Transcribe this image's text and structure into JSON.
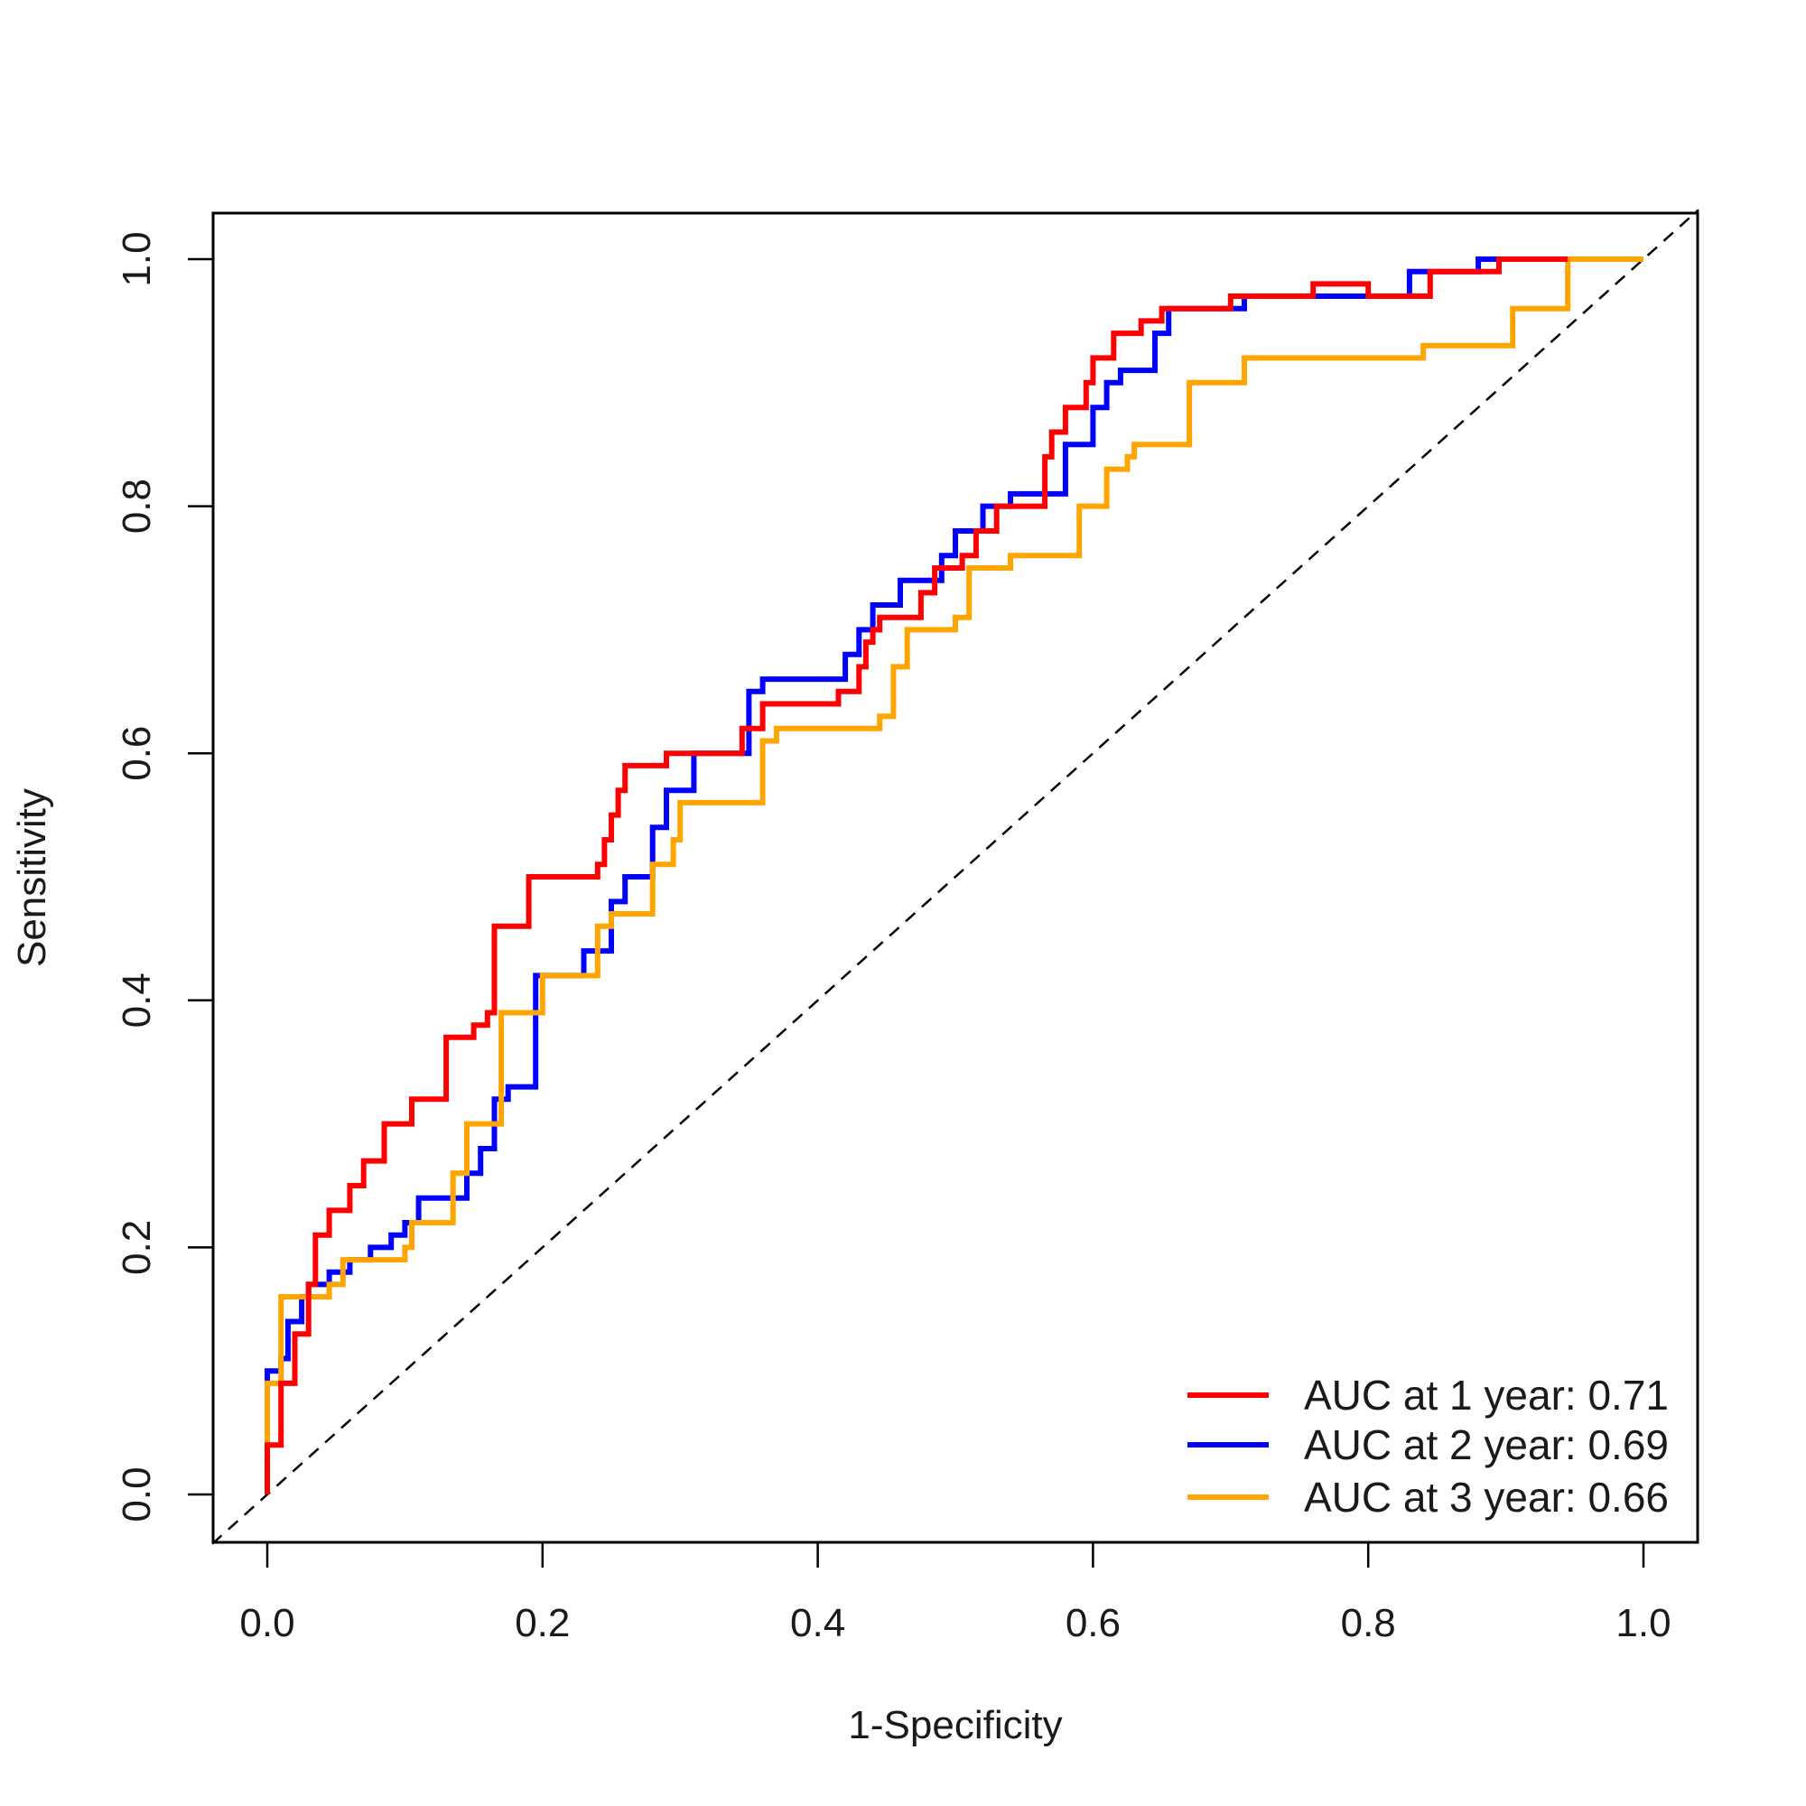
{
  "chart_data": {
    "type": "line",
    "title": "",
    "xlabel": "1-Specificity",
    "ylabel": "Sensitivity",
    "xlim": [
      0,
      1
    ],
    "ylim": [
      0,
      1
    ],
    "xticks": [
      "0.0",
      "0.2",
      "0.4",
      "0.6",
      "0.8",
      "1.0"
    ],
    "yticks": [
      "0.0",
      "0.2",
      "0.4",
      "0.6",
      "0.8",
      "1.0"
    ],
    "grid": false,
    "legend_position": "bottom-right",
    "reference_line": {
      "from": [
        0,
        0
      ],
      "to": [
        1,
        1
      ],
      "color": "#000000",
      "style": "dashed"
    },
    "series": [
      {
        "name": "AUC at 1 year: 0.71",
        "color": "#ff0000",
        "points": [
          [
            0.0,
            0.0
          ],
          [
            0.0,
            0.04
          ],
          [
            0.01,
            0.04
          ],
          [
            0.01,
            0.09
          ],
          [
            0.02,
            0.09
          ],
          [
            0.02,
            0.13
          ],
          [
            0.03,
            0.13
          ],
          [
            0.03,
            0.17
          ],
          [
            0.035,
            0.17
          ],
          [
            0.035,
            0.21
          ],
          [
            0.045,
            0.21
          ],
          [
            0.045,
            0.23
          ],
          [
            0.06,
            0.23
          ],
          [
            0.06,
            0.25
          ],
          [
            0.07,
            0.25
          ],
          [
            0.07,
            0.27
          ],
          [
            0.085,
            0.27
          ],
          [
            0.085,
            0.3
          ],
          [
            0.105,
            0.3
          ],
          [
            0.105,
            0.32
          ],
          [
            0.13,
            0.32
          ],
          [
            0.13,
            0.37
          ],
          [
            0.15,
            0.37
          ],
          [
            0.15,
            0.38
          ],
          [
            0.16,
            0.38
          ],
          [
            0.16,
            0.39
          ],
          [
            0.165,
            0.39
          ],
          [
            0.165,
            0.46
          ],
          [
            0.19,
            0.46
          ],
          [
            0.19,
            0.5
          ],
          [
            0.24,
            0.5
          ],
          [
            0.24,
            0.51
          ],
          [
            0.245,
            0.51
          ],
          [
            0.245,
            0.53
          ],
          [
            0.25,
            0.53
          ],
          [
            0.25,
            0.55
          ],
          [
            0.255,
            0.55
          ],
          [
            0.255,
            0.57
          ],
          [
            0.26,
            0.57
          ],
          [
            0.26,
            0.59
          ],
          [
            0.29,
            0.59
          ],
          [
            0.29,
            0.6
          ],
          [
            0.345,
            0.6
          ],
          [
            0.345,
            0.62
          ],
          [
            0.36,
            0.62
          ],
          [
            0.36,
            0.64
          ],
          [
            0.415,
            0.64
          ],
          [
            0.415,
            0.65
          ],
          [
            0.43,
            0.65
          ],
          [
            0.43,
            0.67
          ],
          [
            0.435,
            0.67
          ],
          [
            0.435,
            0.69
          ],
          [
            0.44,
            0.69
          ],
          [
            0.44,
            0.7
          ],
          [
            0.445,
            0.7
          ],
          [
            0.445,
            0.71
          ],
          [
            0.475,
            0.71
          ],
          [
            0.475,
            0.73
          ],
          [
            0.485,
            0.73
          ],
          [
            0.485,
            0.75
          ],
          [
            0.505,
            0.75
          ],
          [
            0.505,
            0.76
          ],
          [
            0.515,
            0.76
          ],
          [
            0.515,
            0.78
          ],
          [
            0.53,
            0.78
          ],
          [
            0.53,
            0.8
          ],
          [
            0.565,
            0.8
          ],
          [
            0.565,
            0.84
          ],
          [
            0.57,
            0.84
          ],
          [
            0.57,
            0.86
          ],
          [
            0.58,
            0.86
          ],
          [
            0.58,
            0.88
          ],
          [
            0.595,
            0.88
          ],
          [
            0.595,
            0.9
          ],
          [
            0.6,
            0.9
          ],
          [
            0.6,
            0.92
          ],
          [
            0.615,
            0.92
          ],
          [
            0.615,
            0.94
          ],
          [
            0.635,
            0.94
          ],
          [
            0.635,
            0.95
          ],
          [
            0.65,
            0.95
          ],
          [
            0.65,
            0.96
          ],
          [
            0.7,
            0.96
          ],
          [
            0.7,
            0.97
          ],
          [
            0.76,
            0.97
          ],
          [
            0.76,
            0.98
          ],
          [
            0.8,
            0.98
          ],
          [
            0.8,
            0.97
          ],
          [
            0.845,
            0.97
          ],
          [
            0.845,
            0.99
          ],
          [
            0.895,
            0.99
          ],
          [
            0.895,
            1.0
          ],
          [
            0.945,
            1.0
          ]
        ]
      },
      {
        "name": "AUC at 2 year: 0.69",
        "color": "#0000ff",
        "points": [
          [
            0.0,
            0.0
          ],
          [
            0.0,
            0.1
          ],
          [
            0.01,
            0.1
          ],
          [
            0.01,
            0.11
          ],
          [
            0.015,
            0.11
          ],
          [
            0.015,
            0.14
          ],
          [
            0.025,
            0.14
          ],
          [
            0.025,
            0.16
          ],
          [
            0.03,
            0.16
          ],
          [
            0.03,
            0.17
          ],
          [
            0.045,
            0.17
          ],
          [
            0.045,
            0.18
          ],
          [
            0.06,
            0.18
          ],
          [
            0.06,
            0.19
          ],
          [
            0.075,
            0.19
          ],
          [
            0.075,
            0.2
          ],
          [
            0.09,
            0.2
          ],
          [
            0.09,
            0.21
          ],
          [
            0.1,
            0.21
          ],
          [
            0.1,
            0.22
          ],
          [
            0.11,
            0.22
          ],
          [
            0.11,
            0.24
          ],
          [
            0.145,
            0.24
          ],
          [
            0.145,
            0.26
          ],
          [
            0.155,
            0.26
          ],
          [
            0.155,
            0.28
          ],
          [
            0.165,
            0.28
          ],
          [
            0.165,
            0.32
          ],
          [
            0.175,
            0.32
          ],
          [
            0.175,
            0.33
          ],
          [
            0.195,
            0.33
          ],
          [
            0.195,
            0.42
          ],
          [
            0.23,
            0.42
          ],
          [
            0.23,
            0.44
          ],
          [
            0.25,
            0.44
          ],
          [
            0.25,
            0.48
          ],
          [
            0.26,
            0.48
          ],
          [
            0.26,
            0.5
          ],
          [
            0.28,
            0.5
          ],
          [
            0.28,
            0.54
          ],
          [
            0.29,
            0.54
          ],
          [
            0.29,
            0.57
          ],
          [
            0.31,
            0.57
          ],
          [
            0.31,
            0.6
          ],
          [
            0.35,
            0.6
          ],
          [
            0.35,
            0.65
          ],
          [
            0.36,
            0.65
          ],
          [
            0.36,
            0.66
          ],
          [
            0.42,
            0.66
          ],
          [
            0.42,
            0.68
          ],
          [
            0.43,
            0.68
          ],
          [
            0.43,
            0.7
          ],
          [
            0.44,
            0.7
          ],
          [
            0.44,
            0.72
          ],
          [
            0.46,
            0.72
          ],
          [
            0.46,
            0.74
          ],
          [
            0.49,
            0.74
          ],
          [
            0.49,
            0.76
          ],
          [
            0.5,
            0.76
          ],
          [
            0.5,
            0.78
          ],
          [
            0.52,
            0.78
          ],
          [
            0.52,
            0.8
          ],
          [
            0.54,
            0.8
          ],
          [
            0.54,
            0.81
          ],
          [
            0.58,
            0.81
          ],
          [
            0.58,
            0.85
          ],
          [
            0.6,
            0.85
          ],
          [
            0.6,
            0.88
          ],
          [
            0.61,
            0.88
          ],
          [
            0.61,
            0.9
          ],
          [
            0.62,
            0.9
          ],
          [
            0.62,
            0.91
          ],
          [
            0.645,
            0.91
          ],
          [
            0.645,
            0.94
          ],
          [
            0.655,
            0.94
          ],
          [
            0.655,
            0.96
          ],
          [
            0.71,
            0.96
          ],
          [
            0.71,
            0.97
          ],
          [
            0.83,
            0.97
          ],
          [
            0.83,
            0.99
          ],
          [
            0.88,
            0.99
          ],
          [
            0.88,
            1.0
          ],
          [
            0.945,
            1.0
          ]
        ]
      },
      {
        "name": "AUC at 3 year: 0.66",
        "color": "#ffa500",
        "points": [
          [
            0.0,
            0.0
          ],
          [
            0.0,
            0.09
          ],
          [
            0.01,
            0.09
          ],
          [
            0.01,
            0.16
          ],
          [
            0.045,
            0.16
          ],
          [
            0.045,
            0.17
          ],
          [
            0.055,
            0.17
          ],
          [
            0.055,
            0.19
          ],
          [
            0.1,
            0.19
          ],
          [
            0.1,
            0.2
          ],
          [
            0.105,
            0.2
          ],
          [
            0.105,
            0.22
          ],
          [
            0.135,
            0.22
          ],
          [
            0.135,
            0.26
          ],
          [
            0.145,
            0.26
          ],
          [
            0.145,
            0.3
          ],
          [
            0.17,
            0.3
          ],
          [
            0.17,
            0.39
          ],
          [
            0.2,
            0.39
          ],
          [
            0.2,
            0.42
          ],
          [
            0.24,
            0.42
          ],
          [
            0.24,
            0.46
          ],
          [
            0.25,
            0.46
          ],
          [
            0.25,
            0.47
          ],
          [
            0.28,
            0.47
          ],
          [
            0.28,
            0.51
          ],
          [
            0.295,
            0.51
          ],
          [
            0.295,
            0.53
          ],
          [
            0.3,
            0.53
          ],
          [
            0.3,
            0.56
          ],
          [
            0.36,
            0.56
          ],
          [
            0.36,
            0.61
          ],
          [
            0.37,
            0.61
          ],
          [
            0.37,
            0.62
          ],
          [
            0.445,
            0.62
          ],
          [
            0.445,
            0.63
          ],
          [
            0.455,
            0.63
          ],
          [
            0.455,
            0.67
          ],
          [
            0.465,
            0.67
          ],
          [
            0.465,
            0.7
          ],
          [
            0.5,
            0.7
          ],
          [
            0.5,
            0.71
          ],
          [
            0.51,
            0.71
          ],
          [
            0.51,
            0.75
          ],
          [
            0.54,
            0.75
          ],
          [
            0.54,
            0.76
          ],
          [
            0.59,
            0.76
          ],
          [
            0.59,
            0.8
          ],
          [
            0.61,
            0.8
          ],
          [
            0.61,
            0.83
          ],
          [
            0.625,
            0.83
          ],
          [
            0.625,
            0.84
          ],
          [
            0.63,
            0.84
          ],
          [
            0.63,
            0.85
          ],
          [
            0.67,
            0.85
          ],
          [
            0.67,
            0.9
          ],
          [
            0.71,
            0.9
          ],
          [
            0.71,
            0.92
          ],
          [
            0.84,
            0.92
          ],
          [
            0.84,
            0.93
          ],
          [
            0.905,
            0.93
          ],
          [
            0.905,
            0.96
          ],
          [
            0.945,
            0.96
          ],
          [
            0.945,
            1.0
          ],
          [
            1.0,
            1.0
          ]
        ]
      }
    ]
  }
}
